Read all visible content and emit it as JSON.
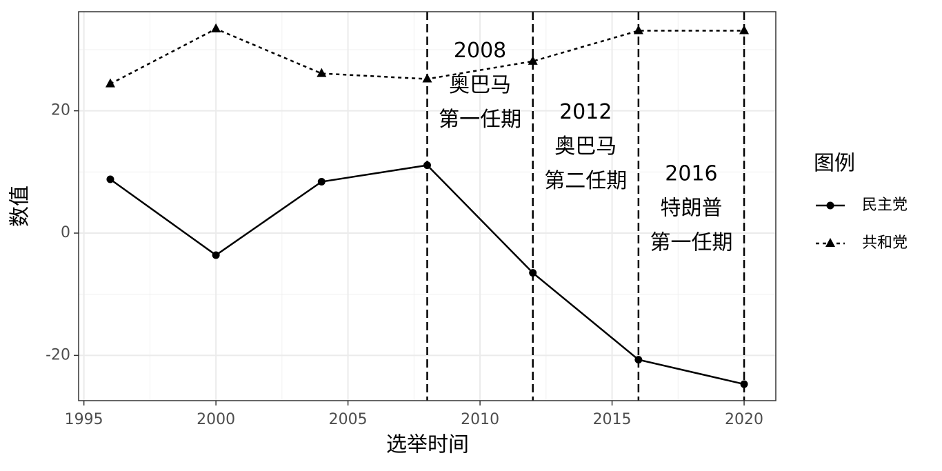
{
  "chart_data": {
    "type": "line",
    "x_label": "选举时间",
    "y_label": "数值",
    "x": [
      1996,
      2000,
      2004,
      2008,
      2012,
      2016,
      2020
    ],
    "series": [
      {
        "name": "民主党",
        "color": "#000000",
        "dash": "solid",
        "marker": "circle",
        "values": [
          8.8,
          -3.6,
          8.4,
          11.1,
          -6.5,
          -20.7,
          -24.7
        ]
      },
      {
        "name": "共和党",
        "color": "#000000",
        "dash": "dotted",
        "marker": "triangle",
        "values": [
          24.4,
          33.4,
          26.1,
          25.2,
          28.1,
          33.1,
          33.1
        ]
      }
    ],
    "xlim": [
      1994.8,
      2021.2
    ],
    "xticks": [
      1995,
      2000,
      2005,
      2010,
      2015,
      2020
    ],
    "ylim": [
      -27.4,
      36.2
    ],
    "yticks": [
      -20,
      0,
      20
    ],
    "grid": true,
    "vlines": [
      2008,
      2012,
      2016,
      2020
    ],
    "annotations": [
      {
        "x": 2010,
        "y": 29.7,
        "lines": [
          "2008",
          "奥巴马",
          "第一任期"
        ]
      },
      {
        "x": 2014,
        "y": 19.7,
        "lines": [
          "2012",
          "奥巴马",
          "第二任期"
        ]
      },
      {
        "x": 2018,
        "y": 9.6,
        "lines": [
          "2016",
          "特朗普",
          "第一任期"
        ]
      }
    ],
    "legend_title": "图例",
    "legend_position": "right"
  }
}
